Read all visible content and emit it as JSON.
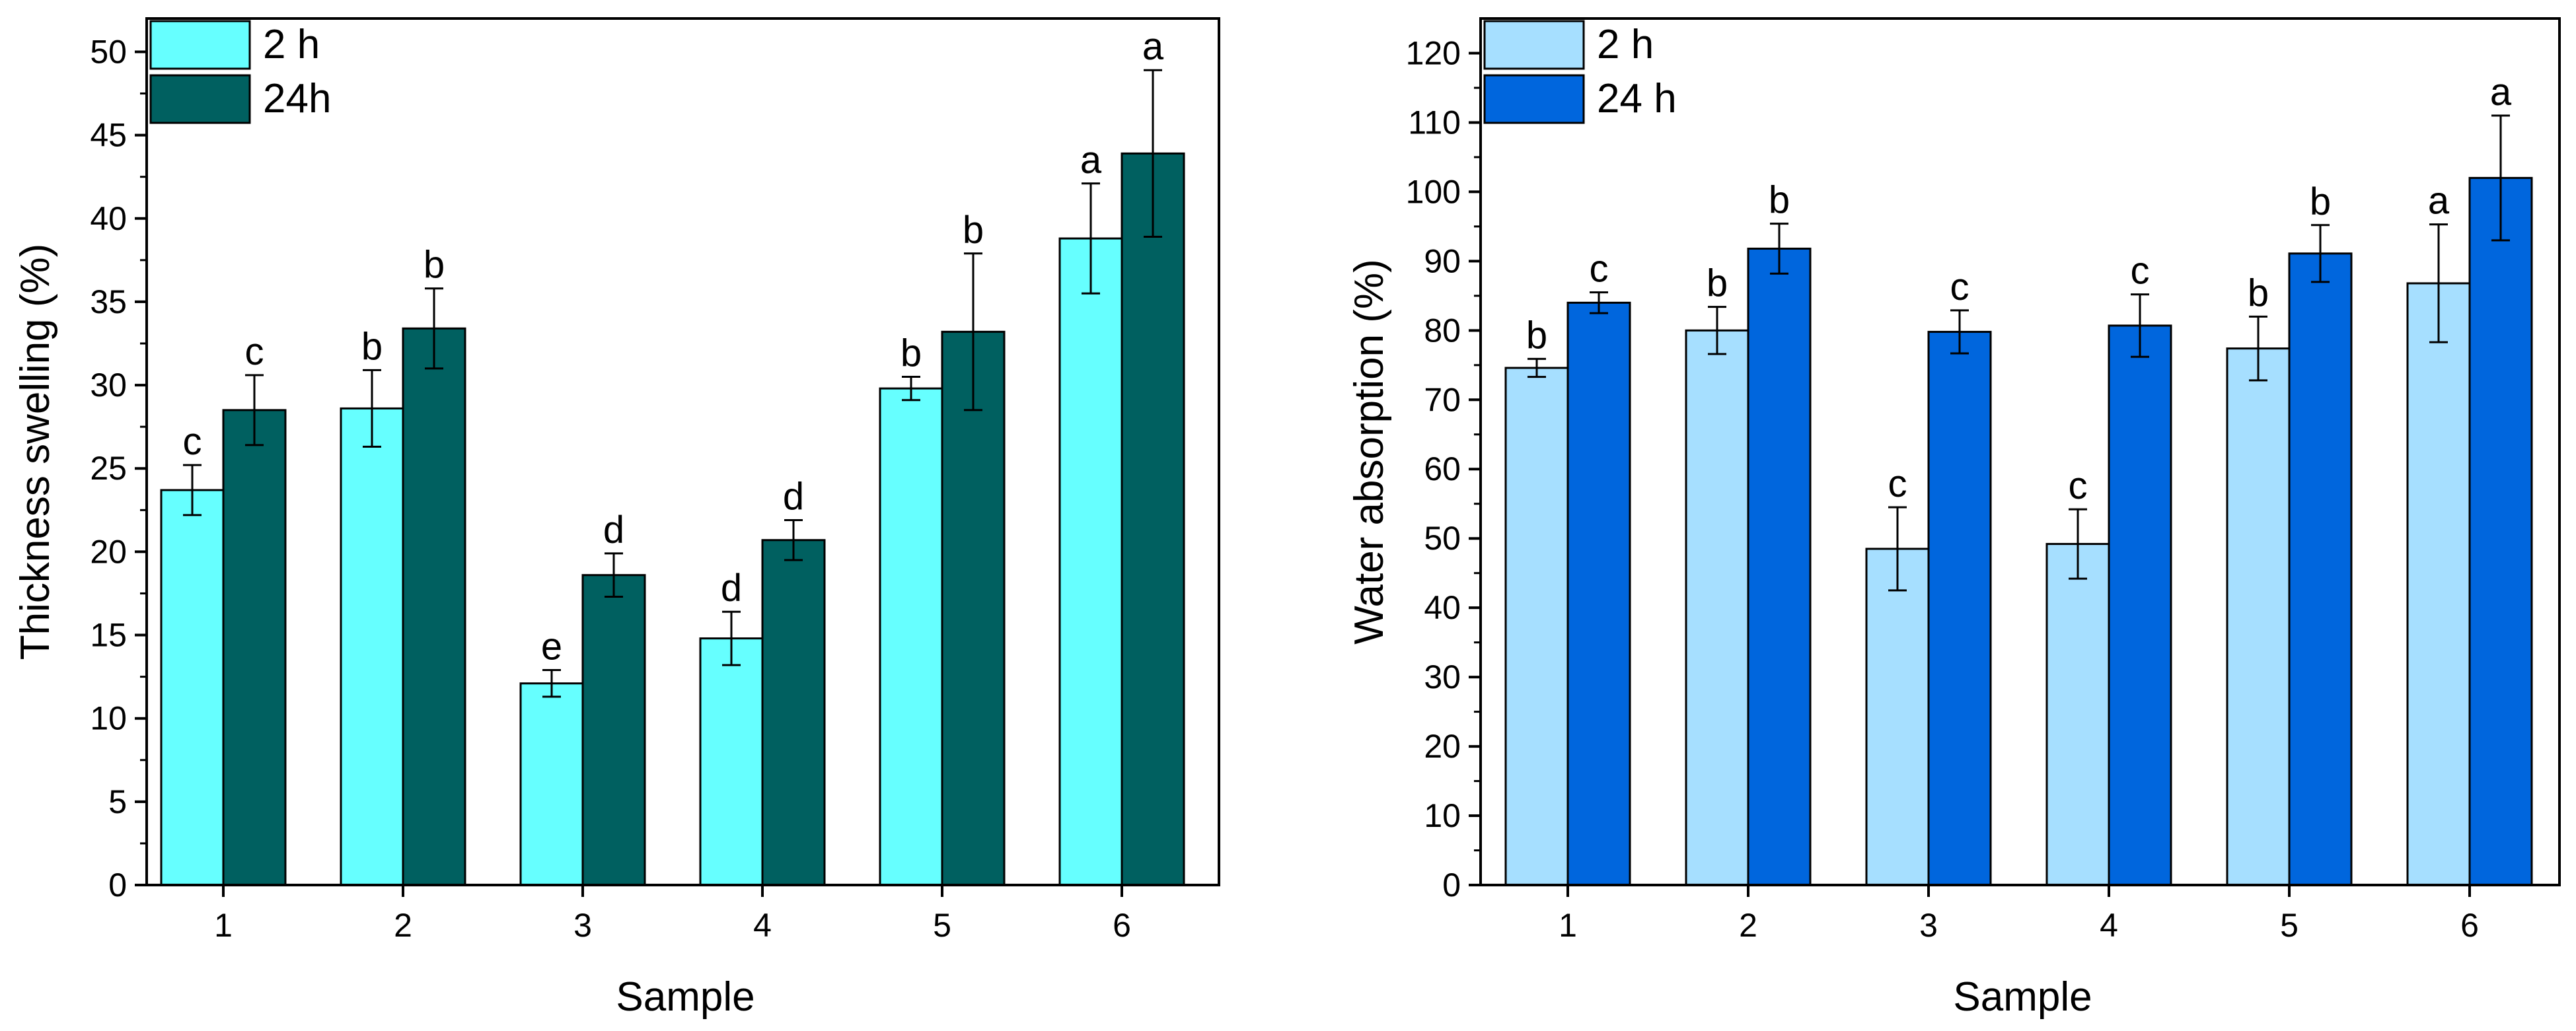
{
  "chart_data": [
    {
      "type": "bar",
      "title": "",
      "xlabel": "Sample",
      "ylabel": "Thickness swelling (%)",
      "categories": [
        "1",
        "2",
        "3",
        "4",
        "5",
        "6"
      ],
      "ylim": [
        0,
        52
      ],
      "yticks": [
        0,
        5,
        10,
        15,
        20,
        25,
        30,
        35,
        40,
        45,
        50
      ],
      "grid": false,
      "legend_position": "top-left",
      "series": [
        {
          "name": "2 h",
          "color": "#66FFFF",
          "values": [
            23.7,
            28.6,
            12.1,
            14.8,
            29.8,
            38.8
          ],
          "errors": [
            1.5,
            2.3,
            0.8,
            1.6,
            0.7,
            3.3
          ],
          "labels": [
            "c",
            "b",
            "e",
            "d",
            "b",
            "a"
          ]
        },
        {
          "name": "24h",
          "color": "#006060",
          "values": [
            28.5,
            33.4,
            18.6,
            20.7,
            33.2,
            43.9
          ],
          "errors": [
            2.1,
            2.4,
            1.3,
            1.2,
            4.7,
            5.0
          ],
          "labels": [
            "c",
            "b",
            "d",
            "d",
            "b",
            "a"
          ]
        }
      ]
    },
    {
      "type": "bar",
      "title": "",
      "xlabel": "Sample",
      "ylabel": "Water absorption (%)",
      "categories": [
        "1",
        "2",
        "3",
        "4",
        "5",
        "6"
      ],
      "ylim": [
        0,
        125
      ],
      "yticks": [
        0,
        10,
        20,
        30,
        40,
        50,
        60,
        70,
        80,
        90,
        100,
        110,
        120
      ],
      "grid": false,
      "legend_position": "top-left",
      "series": [
        {
          "name": "2 h",
          "color": "#A6DFFF",
          "values": [
            74.6,
            80.0,
            48.5,
            49.2,
            77.4,
            86.8
          ],
          "errors": [
            1.3,
            3.4,
            6.0,
            5.0,
            4.6,
            8.5
          ],
          "labels": [
            "b",
            "b",
            "c",
            "c",
            "b",
            "a"
          ]
        },
        {
          "name": "24 h",
          "color": "#0066DD",
          "values": [
            84.0,
            91.8,
            79.8,
            80.7,
            91.1,
            102.0
          ],
          "errors": [
            1.5,
            3.6,
            3.1,
            4.5,
            4.1,
            9.0
          ],
          "labels": [
            "c",
            "b",
            "c",
            "c",
            "b",
            "a"
          ]
        }
      ]
    }
  ]
}
